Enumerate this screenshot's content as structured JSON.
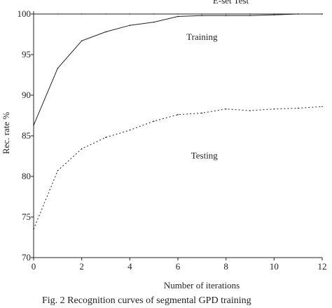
{
  "chart_data": {
    "type": "line",
    "title": "",
    "xlabel": "Number of iterations",
    "ylabel": "Rec. rate %",
    "xlim": [
      0,
      12
    ],
    "ylim": [
      70,
      100
    ],
    "xticks": [
      0,
      2,
      4,
      6,
      8,
      10,
      12
    ],
    "yticks": [
      70,
      75,
      80,
      85,
      90,
      95,
      100
    ],
    "grid": false,
    "series": [
      {
        "name": "E-set Test",
        "style": "solid",
        "x": [
          0,
          1,
          2,
          3,
          4,
          5,
          6,
          7,
          8,
          9,
          10,
          11,
          12
        ],
        "y": [
          100,
          100,
          100,
          100,
          100,
          100,
          100,
          100,
          100,
          100,
          100,
          100,
          100
        ]
      },
      {
        "name": "Training",
        "style": "solid",
        "x": [
          0,
          1,
          2,
          3,
          4,
          5,
          6,
          7,
          8,
          9,
          10,
          11,
          12
        ],
        "y": [
          86.3,
          93.3,
          96.7,
          97.8,
          98.6,
          99.0,
          99.7,
          99.8,
          99.8,
          99.8,
          99.9,
          100,
          100
        ]
      },
      {
        "name": "Testing",
        "style": "dotted",
        "x": [
          0,
          1,
          2,
          3,
          4,
          5,
          6,
          7,
          8,
          9,
          10,
          11,
          12
        ],
        "y": [
          73.5,
          80.7,
          83.4,
          84.8,
          85.7,
          86.8,
          87.6,
          87.8,
          88.3,
          88.1,
          88.3,
          88.4,
          88.6
        ]
      }
    ],
    "annotations": [
      {
        "text": "E-set Test",
        "x": 8.2,
        "y": 101.3
      },
      {
        "text": "Training",
        "x": 7.0,
        "y": 96.8
      },
      {
        "text": "Testing",
        "x": 7.1,
        "y": 82.2
      }
    ]
  },
  "caption": "Fig. 2    Recognition curves of segmental GPD training"
}
